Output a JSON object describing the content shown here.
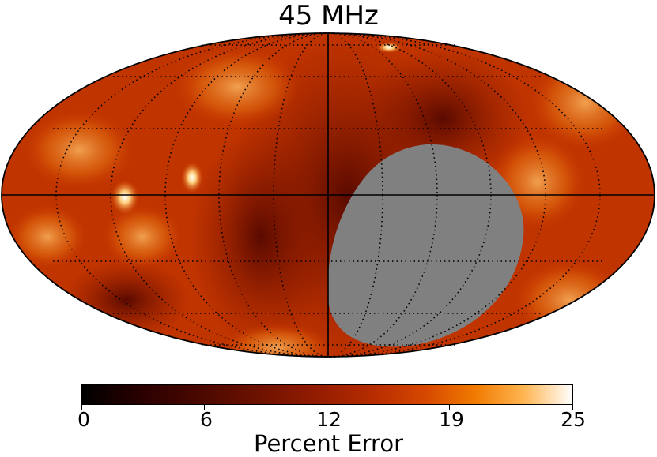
{
  "map": {
    "title": "45 MHz",
    "projection": "mollweide",
    "masked_region_color": "#808080",
    "graticule": "dotted",
    "colormap": "afmhot"
  },
  "colorbar": {
    "label": "Percent Error",
    "range": [
      0,
      25
    ],
    "ticks": [
      "0",
      "6",
      "12",
      "19",
      "25"
    ]
  }
}
